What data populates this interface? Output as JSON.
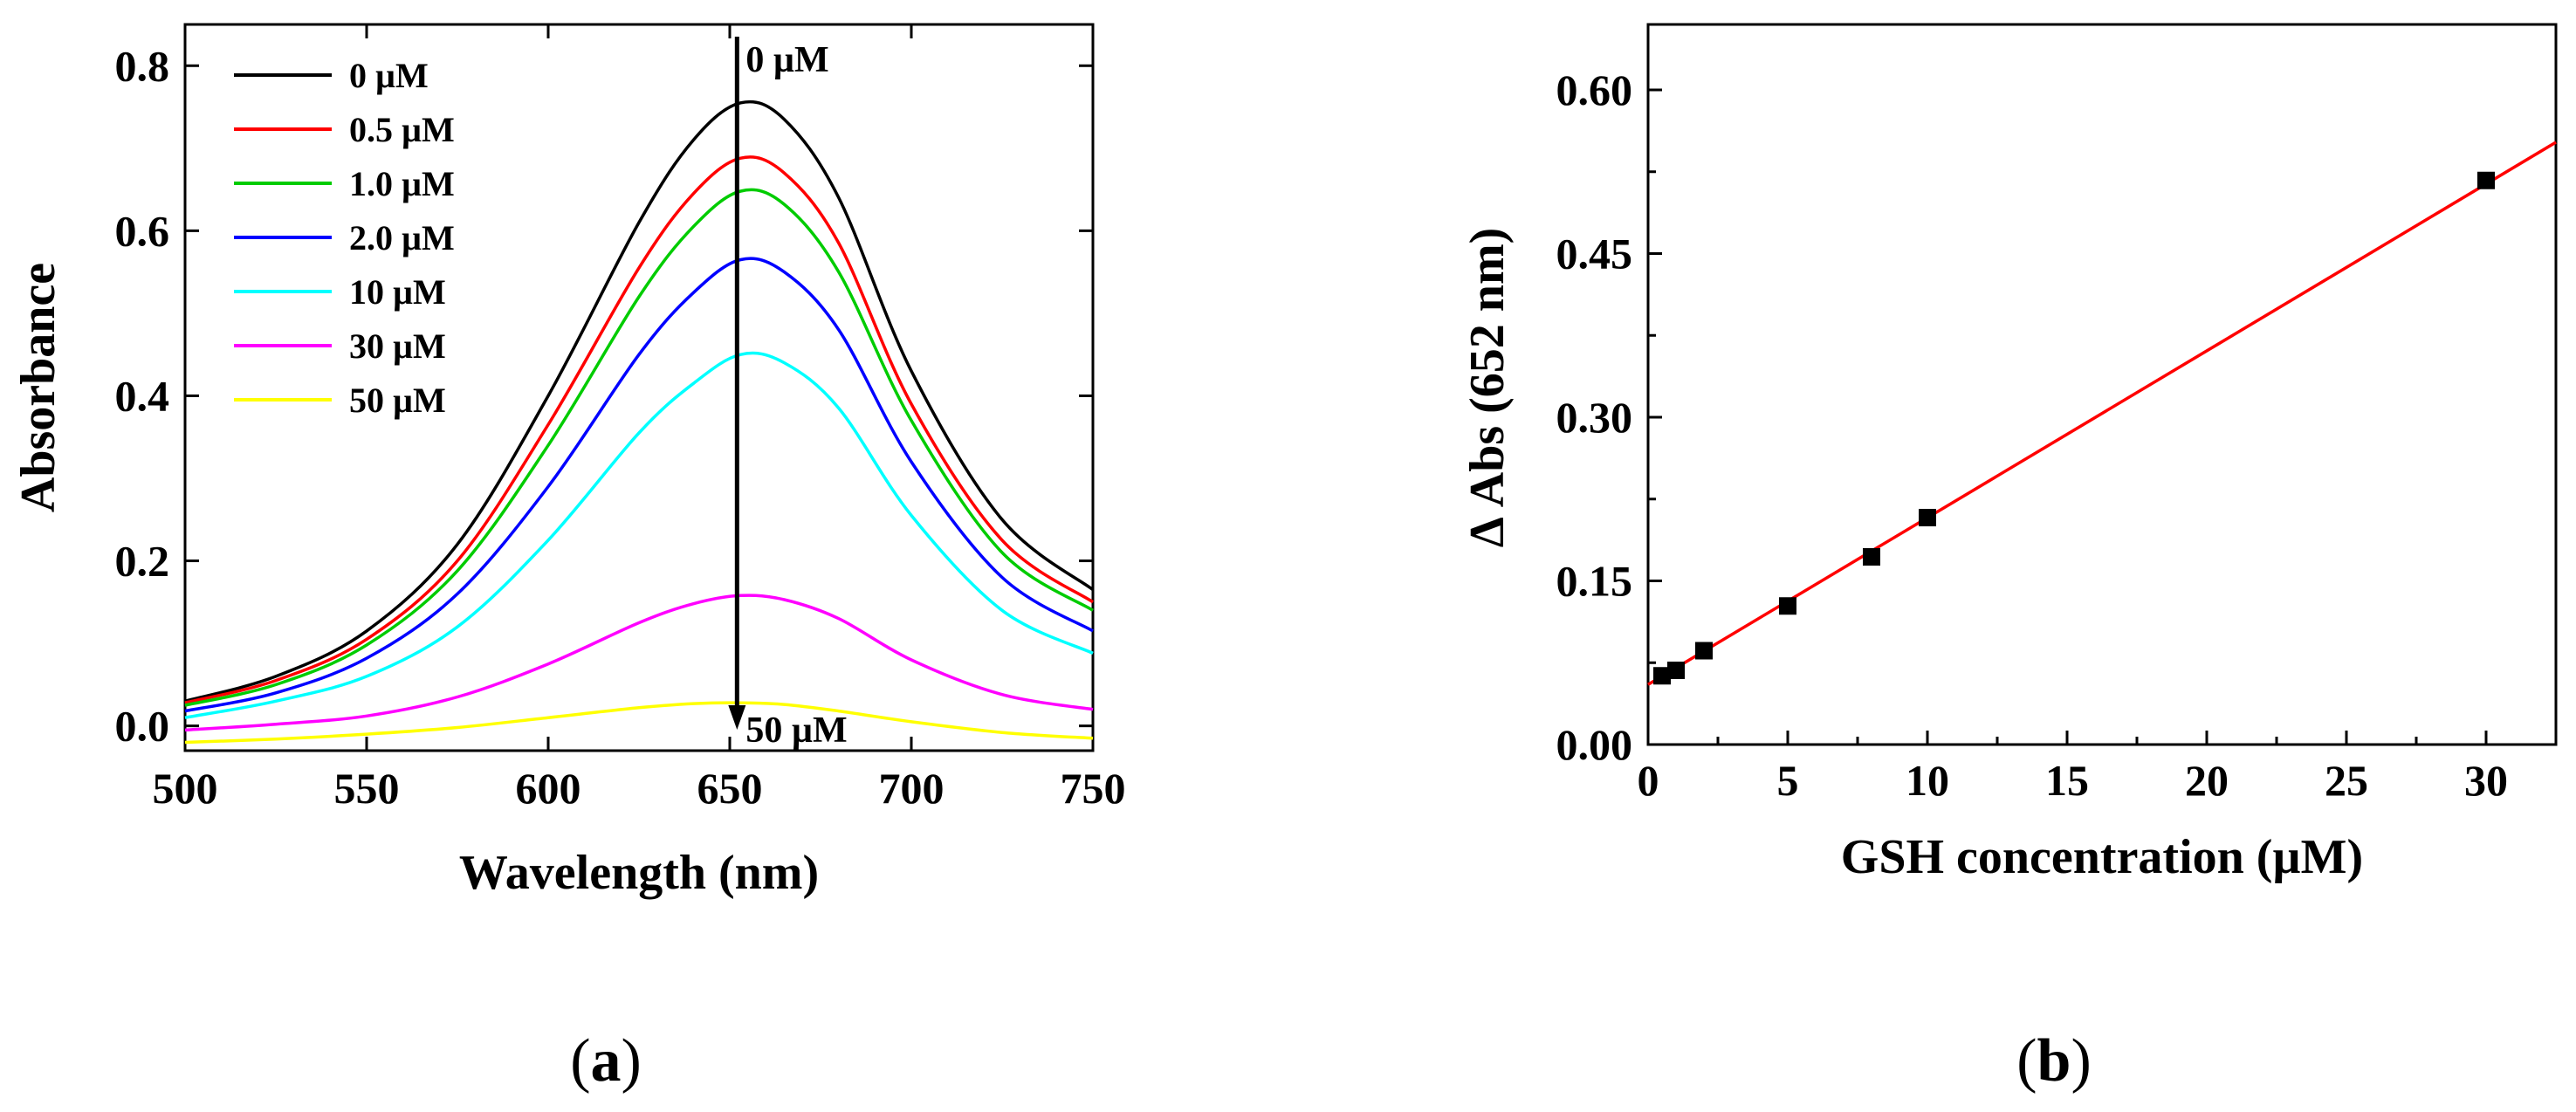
{
  "chart_data": [
    {
      "type": "line",
      "panel_label": "(a)",
      "panel_letter": "a",
      "xlabel": "Wavelength (nm)",
      "ylabel": "Absorbance",
      "xlim": [
        500,
        750
      ],
      "ylim": [
        -0.03,
        0.85
      ],
      "xticks": [
        500,
        550,
        600,
        650,
        700,
        750
      ],
      "yticks": [
        0.0,
        0.2,
        0.4,
        0.6,
        0.8
      ],
      "ytick_labels": [
        "0.0",
        "0.2",
        "0.4",
        "0.6",
        "0.8"
      ],
      "legend_position": "top-left",
      "annotations": {
        "top": "0 µM",
        "bottom": "50 µM",
        "arrow_x": 652
      },
      "series": [
        {
          "name": "0 µM",
          "color": "#000000",
          "x": [
            500,
            525,
            550,
            575,
            600,
            625,
            640,
            653,
            665,
            680,
            700,
            725,
            750
          ],
          "values": [
            0.03,
            0.06,
            0.115,
            0.22,
            0.4,
            0.61,
            0.71,
            0.755,
            0.735,
            0.64,
            0.43,
            0.25,
            0.165
          ]
        },
        {
          "name": "0.5 µM",
          "color": "#ff0000",
          "x": [
            500,
            525,
            550,
            575,
            600,
            625,
            640,
            653,
            665,
            680,
            700,
            725,
            750
          ],
          "values": [
            0.028,
            0.055,
            0.105,
            0.2,
            0.365,
            0.555,
            0.645,
            0.688,
            0.67,
            0.585,
            0.39,
            0.225,
            0.15
          ]
        },
        {
          "name": "1.0 µM",
          "color": "#00cc00",
          "x": [
            500,
            525,
            550,
            575,
            600,
            625,
            640,
            653,
            665,
            680,
            700,
            725,
            750
          ],
          "values": [
            0.025,
            0.05,
            0.098,
            0.188,
            0.34,
            0.52,
            0.605,
            0.648,
            0.632,
            0.55,
            0.37,
            0.21,
            0.14
          ]
        },
        {
          "name": "2.0 µM",
          "color": "#0000ff",
          "x": [
            500,
            525,
            550,
            575,
            600,
            625,
            640,
            653,
            665,
            680,
            700,
            725,
            750
          ],
          "values": [
            0.018,
            0.04,
            0.082,
            0.16,
            0.29,
            0.45,
            0.525,
            0.565,
            0.55,
            0.48,
            0.32,
            0.18,
            0.115
          ]
        },
        {
          "name": "10 µM",
          "color": "#00ffff",
          "x": [
            500,
            525,
            550,
            575,
            600,
            625,
            640,
            653,
            665,
            680,
            700,
            725,
            750
          ],
          "values": [
            0.01,
            0.03,
            0.06,
            0.12,
            0.225,
            0.355,
            0.415,
            0.45,
            0.44,
            0.385,
            0.255,
            0.14,
            0.088
          ]
        },
        {
          "name": "30 µM",
          "color": "#ff00ff",
          "x": [
            500,
            525,
            550,
            575,
            600,
            625,
            640,
            653,
            665,
            680,
            700,
            725,
            750
          ],
          "values": [
            -0.005,
            0.002,
            0.012,
            0.035,
            0.075,
            0.125,
            0.148,
            0.158,
            0.153,
            0.13,
            0.08,
            0.038,
            0.02
          ]
        },
        {
          "name": "50 µM",
          "color": "#ffff00",
          "x": [
            500,
            525,
            550,
            575,
            600,
            625,
            640,
            653,
            665,
            680,
            700,
            725,
            750
          ],
          "values": [
            -0.02,
            -0.016,
            -0.01,
            -0.002,
            0.01,
            0.022,
            0.027,
            0.028,
            0.026,
            0.018,
            0.005,
            -0.008,
            -0.015
          ]
        }
      ]
    },
    {
      "type": "scatter",
      "panel_label": "(b)",
      "panel_letter": "b",
      "xlabel": "GSH concentration (µM)",
      "ylabel": "Δ Abs (652 nm)",
      "xlim": [
        0,
        32.5
      ],
      "ylim": [
        0,
        0.66
      ],
      "xticks": [
        0,
        5,
        10,
        15,
        20,
        25,
        30
      ],
      "yticks": [
        0.0,
        0.15,
        0.3,
        0.45,
        0.6
      ],
      "ytick_labels": [
        "0.00",
        "0.15",
        "0.30",
        "0.45",
        "0.60"
      ],
      "points": {
        "x": [
          0.5,
          1,
          2,
          5,
          8,
          10,
          30
        ],
        "y": [
          0.063,
          0.068,
          0.086,
          0.127,
          0.172,
          0.208,
          0.517
        ]
      },
      "fit_line": {
        "color": "#ff0000",
        "x": [
          0,
          32.5
        ],
        "y": [
          0.055,
          0.552
        ]
      }
    }
  ]
}
